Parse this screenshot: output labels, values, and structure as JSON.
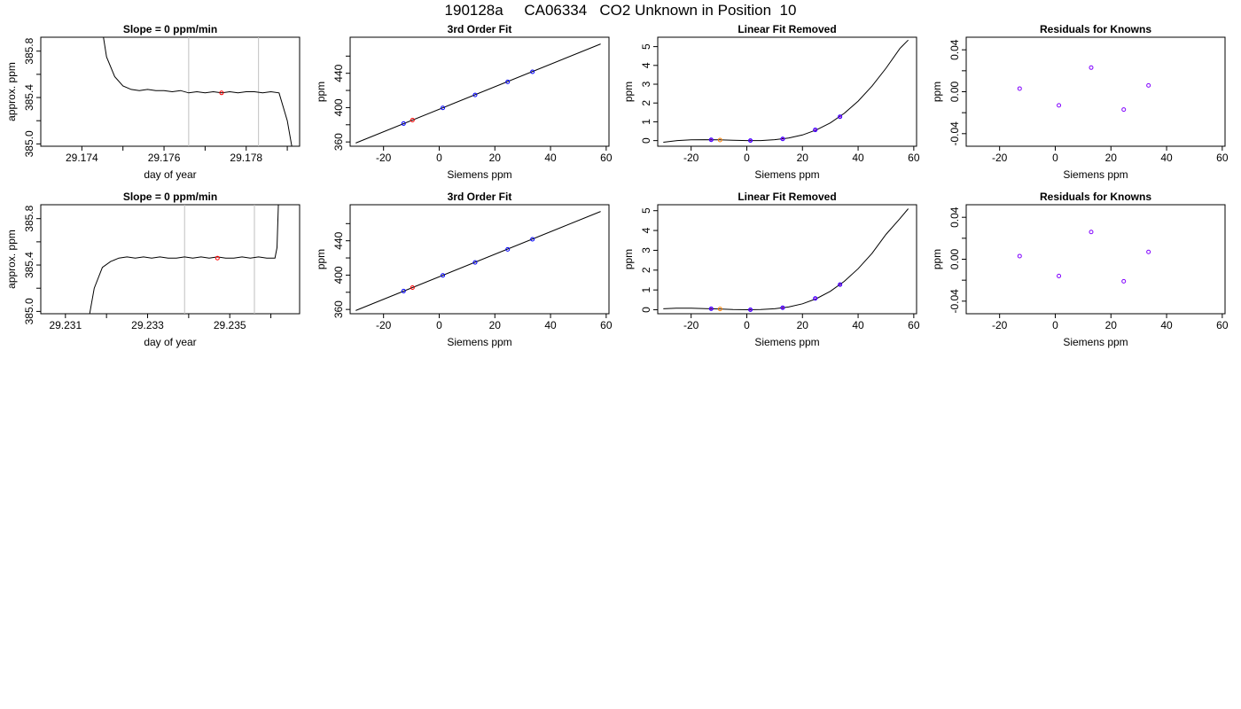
{
  "page": {
    "title": "190128a     CA06334   CO2 Unknown in Position  10"
  },
  "colors": {
    "line": "#000000",
    "known_point": "#0000ff",
    "unknown_point_fit": "#ff0000",
    "unknown_point_linear": "#ff8000",
    "residual_point": "#8000ff",
    "window_line": "#c0c0c0"
  },
  "chart_data": [
    {
      "type": "line",
      "row": 0,
      "col": 0,
      "title": "Slope =  0  ppm/min",
      "xlabel": "day of year",
      "ylabel": "approx. ppm",
      "xlim": [
        29.173,
        29.1793
      ],
      "ylim": [
        384.98,
        385.92
      ],
      "xticks": [
        29.174,
        29.175,
        29.176,
        29.177,
        29.178,
        29.179
      ],
      "xticklabels": [
        "29.174",
        "",
        "29.176",
        "",
        "29.178",
        ""
      ],
      "yticks": [
        385.0,
        385.2,
        385.4,
        385.6,
        385.8
      ],
      "yticklabels": [
        "385.0",
        "",
        "385.4",
        "",
        "385.8"
      ],
      "vlines": [
        29.1766,
        29.1783
      ],
      "series": [
        {
          "x": [
            29.1744,
            29.1746,
            29.1748,
            29.175,
            29.1752,
            29.1754,
            29.1756,
            29.1758,
            29.176,
            29.1762,
            29.1764,
            29.1766,
            29.1768,
            29.177,
            29.1772,
            29.1774,
            29.1776,
            29.1778,
            29.178,
            29.1782,
            29.1784,
            29.1786,
            29.1788,
            29.179,
            29.17915
          ],
          "y": [
            386.2,
            385.75,
            385.58,
            385.5,
            385.47,
            385.46,
            385.47,
            385.46,
            385.46,
            385.45,
            385.46,
            385.44,
            385.45,
            385.44,
            385.45,
            385.44,
            385.45,
            385.44,
            385.45,
            385.45,
            385.44,
            385.45,
            385.44,
            385.2,
            384.9
          ]
        }
      ],
      "points": [
        {
          "x": 29.1774,
          "y": 385.44,
          "kind": "unknown"
        }
      ]
    },
    {
      "type": "scatter",
      "row": 0,
      "col": 1,
      "title": "3rd Order Fit",
      "xlabel": "Siemens ppm",
      "ylabel": "ppm",
      "xlim": [
        -32,
        61
      ],
      "ylim": [
        355,
        482
      ],
      "xticks": [
        -20,
        0,
        20,
        40,
        60
      ],
      "xticklabels": [
        "-20",
        "0",
        "20",
        "40",
        "60"
      ],
      "yticks": [
        360,
        380,
        400,
        420,
        440,
        460
      ],
      "yticklabels": [
        "360",
        "",
        "400",
        "",
        "440",
        ""
      ],
      "curve": {
        "x": [
          -30,
          58
        ],
        "y": [
          358.7,
          474.2
        ]
      },
      "knowns": [
        {
          "x": -12.8,
          "y": 381.4
        },
        {
          "x": 1.3,
          "y": 399.7
        },
        {
          "x": 12.9,
          "y": 414.8
        },
        {
          "x": 24.6,
          "y": 430.0
        },
        {
          "x": 33.5,
          "y": 441.7
        }
      ],
      "unknowns": [
        {
          "x": -9.6,
          "y": 385.5
        }
      ]
    },
    {
      "type": "scatter",
      "row": 0,
      "col": 2,
      "title": "Linear Fit Removed",
      "xlabel": "Siemens ppm",
      "ylabel": "ppm",
      "xlim": [
        -32,
        61
      ],
      "ylim": [
        -0.3,
        5.5
      ],
      "xticks": [
        -20,
        0,
        20,
        40,
        60
      ],
      "xticklabels": [
        "-20",
        "0",
        "20",
        "40",
        "60"
      ],
      "yticks": [
        0,
        1,
        2,
        3,
        4,
        5
      ],
      "yticklabels": [
        "0",
        "1",
        "2",
        "3",
        "4",
        "5"
      ],
      "curve": {
        "cubic": [
          0.0,
          0.0,
          0.0,
          0.0
        ],
        "x": [
          -30,
          -25,
          -20,
          -15,
          -10,
          -5,
          0,
          5,
          10,
          15,
          20,
          25,
          30,
          35,
          40,
          45,
          50,
          55,
          58
        ],
        "y": [
          -0.09,
          0.0,
          0.04,
          0.05,
          0.04,
          0.02,
          0.0,
          0.0,
          0.05,
          0.14,
          0.3,
          0.57,
          0.94,
          1.45,
          2.1,
          2.9,
          3.85,
          4.9,
          5.35
        ]
      },
      "knowns": [
        {
          "x": -12.8,
          "y": 0.04
        },
        {
          "x": 1.3,
          "y": 0.0
        },
        {
          "x": 12.9,
          "y": 0.09
        },
        {
          "x": 24.6,
          "y": 0.57
        },
        {
          "x": 33.5,
          "y": 1.27
        }
      ],
      "unknowns": [
        {
          "x": -9.6,
          "y": 0.03
        }
      ]
    },
    {
      "type": "scatter",
      "row": 0,
      "col": 3,
      "title": "Residuals for Knowns",
      "xlabel": "Siemens ppm",
      "ylabel": "ppm",
      "xlim": [
        -32,
        61
      ],
      "ylim": [
        -0.052,
        0.052
      ],
      "xticks": [
        -20,
        0,
        20,
        40,
        60
      ],
      "xticklabels": [
        "-20",
        "0",
        "20",
        "40",
        "60"
      ],
      "yticks": [
        -0.04,
        -0.02,
        0.0,
        0.02,
        0.04
      ],
      "yticklabels": [
        "-0.04",
        "",
        "0.00",
        "",
        "0.04"
      ],
      "residuals": [
        {
          "x": -12.8,
          "y": 0.003
        },
        {
          "x": 1.3,
          "y": -0.013
        },
        {
          "x": 12.9,
          "y": 0.023
        },
        {
          "x": 24.6,
          "y": -0.017
        },
        {
          "x": 33.5,
          "y": 0.006
        }
      ]
    },
    {
      "type": "line",
      "row": 1,
      "col": 0,
      "title": "Slope =  0  ppm/min",
      "xlabel": "day of year",
      "ylabel": "approx. ppm",
      "xlim": [
        29.2304,
        29.2367
      ],
      "ylim": [
        384.98,
        385.92
      ],
      "xticks": [
        29.231,
        29.232,
        29.233,
        29.234,
        29.235,
        29.236
      ],
      "xticklabels": [
        "29.231",
        "",
        "29.233",
        "",
        "29.235",
        ""
      ],
      "yticks": [
        385.0,
        385.2,
        385.4,
        385.6,
        385.8
      ],
      "yticklabels": [
        "385.0",
        "",
        "385.4",
        "",
        "385.8"
      ],
      "vlines": [
        29.2339,
        29.2356
      ],
      "series": [
        {
          "x": [
            29.23155,
            29.2317,
            29.2319,
            29.2321,
            29.2323,
            29.2325,
            29.2327,
            29.2329,
            29.2331,
            29.2333,
            29.2335,
            29.2337,
            29.2339,
            29.2341,
            29.2343,
            29.2345,
            29.2347,
            29.2349,
            29.2351,
            29.2353,
            29.2355,
            29.2357,
            29.2359,
            29.2361,
            29.23615,
            29.2362
          ],
          "y": [
            384.9,
            385.2,
            385.38,
            385.43,
            385.46,
            385.47,
            385.46,
            385.47,
            385.46,
            385.47,
            385.46,
            385.46,
            385.47,
            385.46,
            385.47,
            385.46,
            385.47,
            385.46,
            385.46,
            385.47,
            385.46,
            385.47,
            385.46,
            385.46,
            385.55,
            386.1
          ]
        }
      ],
      "points": [
        {
          "x": 29.2347,
          "y": 385.46,
          "kind": "unknown"
        }
      ]
    },
    {
      "type": "scatter",
      "row": 1,
      "col": 1,
      "title": "3rd Order Fit",
      "xlabel": "Siemens ppm",
      "ylabel": "ppm",
      "xlim": [
        -32,
        61
      ],
      "ylim": [
        355,
        482
      ],
      "xticks": [
        -20,
        0,
        20,
        40,
        60
      ],
      "xticklabels": [
        "-20",
        "0",
        "20",
        "40",
        "60"
      ],
      "yticks": [
        360,
        380,
        400,
        420,
        440,
        460
      ],
      "yticklabels": [
        "360",
        "",
        "400",
        "",
        "440",
        ""
      ],
      "curve": {
        "x": [
          -30,
          58
        ],
        "y": [
          358.7,
          474.2
        ]
      },
      "knowns": [
        {
          "x": -12.8,
          "y": 381.4
        },
        {
          "x": 1.3,
          "y": 399.7
        },
        {
          "x": 12.9,
          "y": 414.8
        },
        {
          "x": 24.6,
          "y": 430.0
        },
        {
          "x": 33.5,
          "y": 441.7
        }
      ],
      "unknowns": [
        {
          "x": -9.6,
          "y": 385.5
        }
      ]
    },
    {
      "type": "scatter",
      "row": 1,
      "col": 2,
      "title": "Linear Fit Removed",
      "xlabel": "Siemens ppm",
      "ylabel": "ppm",
      "xlim": [
        -32,
        61
      ],
      "ylim": [
        -0.2,
        5.3
      ],
      "xticks": [
        -20,
        0,
        20,
        40,
        60
      ],
      "xticklabels": [
        "-20",
        "0",
        "20",
        "40",
        "60"
      ],
      "yticks": [
        0,
        1,
        2,
        3,
        4,
        5
      ],
      "yticklabels": [
        "0",
        "1",
        "2",
        "3",
        "4",
        "5"
      ],
      "curve": {
        "x": [
          -30,
          -25,
          -20,
          -15,
          -10,
          -5,
          0,
          5,
          10,
          15,
          20,
          25,
          30,
          35,
          40,
          45,
          50,
          55,
          58
        ],
        "y": [
          0.05,
          0.08,
          0.08,
          0.06,
          0.04,
          0.01,
          0.0,
          0.01,
          0.05,
          0.14,
          0.3,
          0.56,
          0.93,
          1.43,
          2.07,
          2.85,
          3.8,
          4.6,
          5.1
        ]
      },
      "knowns": [
        {
          "x": -12.8,
          "y": 0.05
        },
        {
          "x": 1.3,
          "y": 0.0
        },
        {
          "x": 12.9,
          "y": 0.1
        },
        {
          "x": 24.6,
          "y": 0.57
        },
        {
          "x": 33.5,
          "y": 1.27
        }
      ],
      "unknowns": [
        {
          "x": -9.6,
          "y": 0.04
        }
      ]
    },
    {
      "type": "scatter",
      "row": 1,
      "col": 3,
      "title": "Residuals for Knowns",
      "xlabel": "Siemens ppm",
      "ylabel": "ppm",
      "xlim": [
        -32,
        61
      ],
      "ylim": [
        -0.052,
        0.052
      ],
      "xticks": [
        -20,
        0,
        20,
        40,
        60
      ],
      "xticklabels": [
        "-20",
        "0",
        "20",
        "40",
        "60"
      ],
      "yticks": [
        -0.04,
        -0.02,
        0.0,
        0.02,
        0.04
      ],
      "yticklabels": [
        "-0.04",
        "",
        "0.00",
        "",
        "0.04"
      ],
      "residuals": [
        {
          "x": -12.8,
          "y": 0.003
        },
        {
          "x": 1.3,
          "y": -0.016
        },
        {
          "x": 12.9,
          "y": 0.026
        },
        {
          "x": 24.6,
          "y": -0.021
        },
        {
          "x": 33.5,
          "y": 0.007
        }
      ]
    }
  ]
}
